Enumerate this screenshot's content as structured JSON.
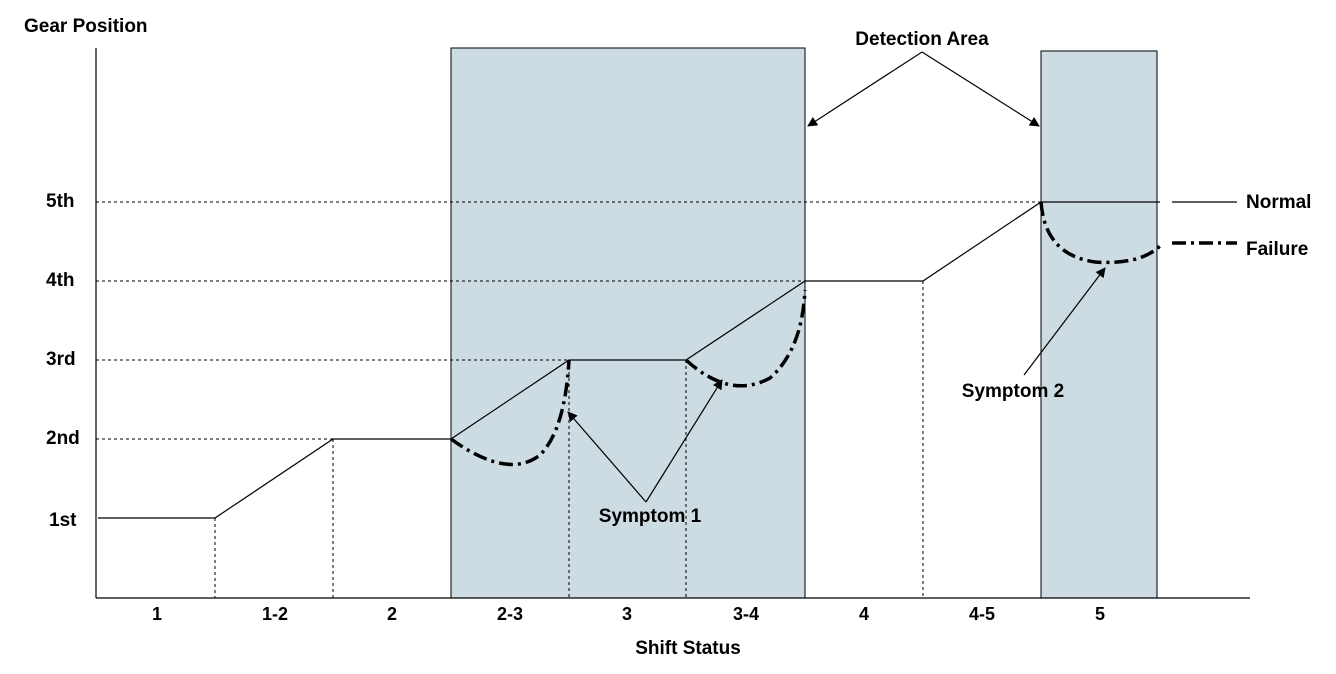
{
  "y_axis": {
    "title": "Gear Position",
    "levels": [
      "1st",
      "2nd",
      "3rd",
      "4th",
      "5th"
    ]
  },
  "x_axis": {
    "title": "Shift Status",
    "categories": [
      "1",
      "1-2",
      "2",
      "2-3",
      "3",
      "3-4",
      "4",
      "4-5",
      "5"
    ]
  },
  "detection_label": "Detection Area",
  "legend": {
    "normal": "Normal",
    "failure": "Failure"
  },
  "annotations": {
    "symptom1": "Symptom 1",
    "symptom2": "Symptom 2"
  },
  "colors": {
    "detection_fill": "#cddbe3",
    "line": "#000000"
  }
}
